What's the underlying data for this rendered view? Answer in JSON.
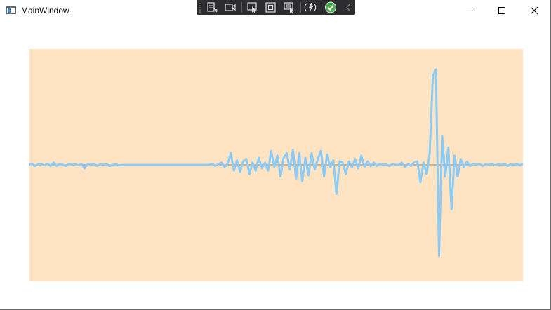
{
  "window": {
    "title": "MainWindow",
    "icon": "app-window-icon",
    "controls": [
      "minimize-icon",
      "maximize-icon",
      "close-icon"
    ]
  },
  "debug_toolbar": {
    "tools": [
      "live-visual-tree-icon",
      "record-icon",
      "select-element-icon",
      "display-layout-adorners-icon",
      "track-focused-element-icon",
      "hot-reload-icon",
      "binding-failures-ok-icon",
      "collapse-toolbar-icon"
    ]
  },
  "chart": {
    "background_color": "#ffe4c4",
    "line_color": "#8ccbf5",
    "baseline_color": "#9a7d6a"
  },
  "chart_data": {
    "type": "line",
    "title": "",
    "xlabel": "",
    "ylabel": "",
    "grid": false,
    "ylim": [
      -1,
      1
    ],
    "series": [
      {
        "values": [
          0,
          0.01,
          -0.01,
          0.005,
          0.01,
          -0.005,
          0.01,
          -0.01,
          0.02,
          -0.01,
          0.01,
          0,
          -0.01,
          0.01,
          0,
          0.005,
          -0.005,
          0.01,
          -0.03,
          0.01,
          0,
          0.01,
          -0.01,
          0.005,
          0,
          0.01,
          -0.01,
          0,
          0.005,
          -0.005,
          0,
          0,
          0,
          0,
          0,
          0,
          0,
          0,
          0,
          0,
          0,
          0,
          0,
          0,
          0,
          0,
          0,
          0,
          0,
          0,
          0,
          0,
          0,
          0,
          0,
          0,
          0,
          0,
          0,
          0.01,
          -0.01,
          0.005,
          0.02,
          -0.02,
          0.01,
          0.1,
          -0.05,
          0.04,
          -0.06,
          0.03,
          0.05,
          -0.08,
          0.02,
          -0.05,
          0.06,
          -0.03,
          0.02,
          -0.05,
          0.12,
          -0.02,
          0.08,
          -0.1,
          0.06,
          0.1,
          -0.04,
          0.13,
          -0.12,
          0.1,
          -0.14,
          0.06,
          -0.09,
          0.1,
          -0.04,
          0.05,
          0.12,
          -0.1,
          0.09,
          -0.02,
          0.04,
          -0.25,
          0.03,
          0.02,
          -0.08,
          0.03,
          -0.02,
          0.05,
          -0.03,
          0.08,
          -0.02,
          0.03,
          -0.01,
          0.02,
          -0.01,
          0.01,
          0,
          0.005,
          -0.01,
          0.01,
          0,
          0,
          0.02,
          -0.02,
          0.01,
          -0.01,
          0.02,
          0.03,
          -0.15,
          0.02,
          -0.08,
          0.1,
          0.76,
          0.82,
          -0.78,
          0.25,
          -0.1,
          0.15,
          -0.38,
          0.08,
          -0.1,
          0.05,
          -0.02,
          0.03,
          -0.01,
          0.01,
          0,
          0.01,
          -0.01,
          0.005,
          0,
          0.01,
          -0.005,
          0.005,
          0,
          0.01,
          -0.01,
          0.005,
          0,
          0.01,
          -0.005,
          0.01
        ]
      }
    ]
  }
}
